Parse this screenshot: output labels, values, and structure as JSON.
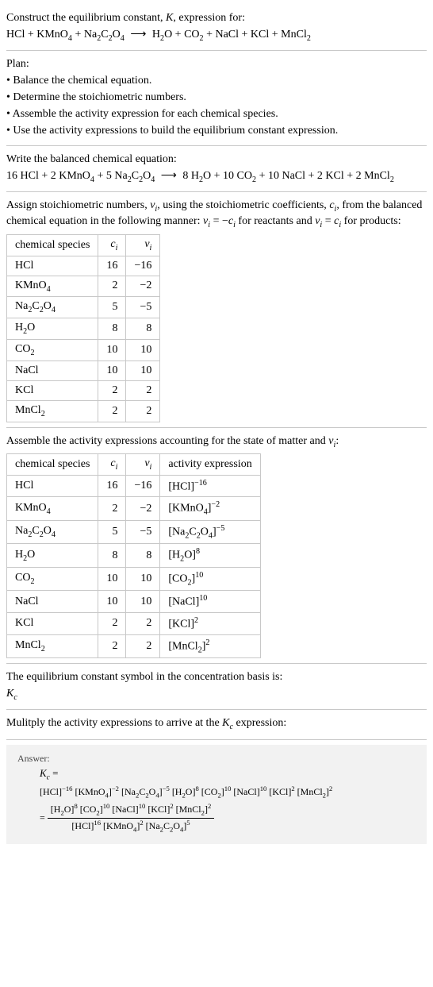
{
  "intro": {
    "line1": "Construct the equilibrium constant, ",
    "K": "K",
    "line1b": ", expression for:",
    "eq_lhs": [
      {
        "t": "HCl"
      },
      {
        "t": " + "
      },
      {
        "t": "KMnO",
        "sub": "4"
      },
      {
        "t": " + "
      },
      {
        "t": "Na",
        "sub": "2"
      },
      {
        "t": "C",
        "sub": "2"
      },
      {
        "t": "O",
        "sub": "4"
      }
    ],
    "eq_rhs": [
      {
        "t": "H",
        "sub": "2"
      },
      {
        "t": "O + CO",
        "sub": "2"
      },
      {
        "t": " + NaCl + KCl + MnCl",
        "sub": "2"
      }
    ]
  },
  "plan": {
    "title": "Plan:",
    "bullets": [
      "Balance the chemical equation.",
      "Determine the stoichiometric numbers.",
      "Assemble the activity expression for each chemical species.",
      "Use the activity expressions to build the equilibrium constant expression."
    ]
  },
  "balanced": {
    "title": "Write the balanced chemical equation:",
    "lhs": [
      {
        "t": "16 HCl + 2 KMnO",
        "sub": "4"
      },
      {
        "t": " + 5 Na",
        "sub": "2"
      },
      {
        "t": "C",
        "sub": "2"
      },
      {
        "t": "O",
        "sub": "4"
      }
    ],
    "rhs": [
      {
        "t": "8 H",
        "sub": "2"
      },
      {
        "t": "O + 10 CO",
        "sub": "2"
      },
      {
        "t": " + 10 NaCl + 2 KCl + 2 MnCl",
        "sub": "2"
      }
    ]
  },
  "stoich": {
    "text_a": "Assign stoichiometric numbers, ",
    "nu": "ν",
    "text_b": ", using the stoichiometric coefficients, ",
    "c": "c",
    "text_c": ", from the balanced chemical equation in the following manner: ",
    "rel1_a": " = −",
    "text_d": " for reactants and ",
    "rel2_a": " = ",
    "text_e": " for products:",
    "headers": [
      "chemical species",
      "c_i",
      "ν_i"
    ],
    "rows": [
      {
        "sp": [
          {
            "t": "HCl"
          }
        ],
        "c": "16",
        "nu": "−16"
      },
      {
        "sp": [
          {
            "t": "KMnO",
            "sub": "4"
          }
        ],
        "c": "2",
        "nu": "−2"
      },
      {
        "sp": [
          {
            "t": "Na",
            "sub": "2"
          },
          {
            "t": "C",
            "sub": "2"
          },
          {
            "t": "O",
            "sub": "4"
          }
        ],
        "c": "5",
        "nu": "−5"
      },
      {
        "sp": [
          {
            "t": "H",
            "sub": "2"
          },
          {
            "t": "O"
          }
        ],
        "c": "8",
        "nu": "8"
      },
      {
        "sp": [
          {
            "t": "CO",
            "sub": "2"
          }
        ],
        "c": "10",
        "nu": "10"
      },
      {
        "sp": [
          {
            "t": "NaCl"
          }
        ],
        "c": "10",
        "nu": "10"
      },
      {
        "sp": [
          {
            "t": "KCl"
          }
        ],
        "c": "2",
        "nu": "2"
      },
      {
        "sp": [
          {
            "t": "MnCl",
            "sub": "2"
          }
        ],
        "c": "2",
        "nu": "2"
      }
    ]
  },
  "activity": {
    "title_a": "Assemble the activity expressions accounting for the state of matter and ",
    "title_b": ":",
    "headers": [
      "chemical species",
      "c_i",
      "ν_i",
      "activity expression"
    ],
    "rows": [
      {
        "sp": [
          {
            "t": "HCl"
          }
        ],
        "c": "16",
        "nu": "−16",
        "ae": [
          {
            "t": "[HCl]",
            "sup": "−16"
          }
        ]
      },
      {
        "sp": [
          {
            "t": "KMnO",
            "sub": "4"
          }
        ],
        "c": "2",
        "nu": "−2",
        "ae": [
          {
            "t": "[KMnO",
            "sub": "4"
          },
          {
            "t": "]",
            "sup": "−2"
          }
        ]
      },
      {
        "sp": [
          {
            "t": "Na",
            "sub": "2"
          },
          {
            "t": "C",
            "sub": "2"
          },
          {
            "t": "O",
            "sub": "4"
          }
        ],
        "c": "5",
        "nu": "−5",
        "ae": [
          {
            "t": "[Na",
            "sub": "2"
          },
          {
            "t": "C",
            "sub": "2"
          },
          {
            "t": "O",
            "sub": "4"
          },
          {
            "t": "]",
            "sup": "−5"
          }
        ]
      },
      {
        "sp": [
          {
            "t": "H",
            "sub": "2"
          },
          {
            "t": "O"
          }
        ],
        "c": "8",
        "nu": "8",
        "ae": [
          {
            "t": "[H",
            "sub": "2"
          },
          {
            "t": "O]",
            "sup": "8"
          }
        ]
      },
      {
        "sp": [
          {
            "t": "CO",
            "sub": "2"
          }
        ],
        "c": "10",
        "nu": "10",
        "ae": [
          {
            "t": "[CO",
            "sub": "2"
          },
          {
            "t": "]",
            "sup": "10"
          }
        ]
      },
      {
        "sp": [
          {
            "t": "NaCl"
          }
        ],
        "c": "10",
        "nu": "10",
        "ae": [
          {
            "t": "[NaCl]",
            "sup": "10"
          }
        ]
      },
      {
        "sp": [
          {
            "t": "KCl"
          }
        ],
        "c": "2",
        "nu": "2",
        "ae": [
          {
            "t": "[KCl]",
            "sup": "2"
          }
        ]
      },
      {
        "sp": [
          {
            "t": "MnCl",
            "sub": "2"
          }
        ],
        "c": "2",
        "nu": "2",
        "ae": [
          {
            "t": "[MnCl",
            "sub": "2"
          },
          {
            "t": "]",
            "sup": "2"
          }
        ]
      }
    ]
  },
  "kc_symbol": {
    "line": "The equilibrium constant symbol in the concentration basis is:",
    "sym": "K",
    "sub": "c"
  },
  "multiply": {
    "text_a": "Mulitply the activity expressions to arrive at the ",
    "text_b": " expression:"
  },
  "answer": {
    "label": "Answer:",
    "kc": "K",
    "kc_sub": "c",
    "eq": " = ",
    "flat": [
      {
        "t": "[HCl]",
        "sup": "−16"
      },
      {
        "t": " [KMnO",
        "sub": "4"
      },
      {
        "t": "]",
        "sup": "−2"
      },
      {
        "t": " [Na",
        "sub": "2"
      },
      {
        "t": "C",
        "sub": "2"
      },
      {
        "t": "O",
        "sub": "4"
      },
      {
        "t": "]",
        "sup": "−5"
      },
      {
        "t": " [H",
        "sub": "2"
      },
      {
        "t": "O]",
        "sup": "8"
      },
      {
        "t": " [CO",
        "sub": "2"
      },
      {
        "t": "]",
        "sup": "10"
      },
      {
        "t": " [NaCl]",
        "sup": "10"
      },
      {
        "t": " [KCl]",
        "sup": "2"
      },
      {
        "t": " [MnCl",
        "sub": "2"
      },
      {
        "t": "]",
        "sup": "2"
      }
    ],
    "numerator": [
      {
        "t": "[H",
        "sub": "2"
      },
      {
        "t": "O]",
        "sup": "8"
      },
      {
        "t": " [CO",
        "sub": "2"
      },
      {
        "t": "]",
        "sup": "10"
      },
      {
        "t": " [NaCl]",
        "sup": "10"
      },
      {
        "t": " [KCl]",
        "sup": "2"
      },
      {
        "t": " [MnCl",
        "sub": "2"
      },
      {
        "t": "]",
        "sup": "2"
      }
    ],
    "denominator": [
      {
        "t": "[HCl]",
        "sup": "16"
      },
      {
        "t": " [KMnO",
        "sub": "4"
      },
      {
        "t": "]",
        "sup": "2"
      },
      {
        "t": " [Na",
        "sub": "2"
      },
      {
        "t": "C",
        "sub": "2"
      },
      {
        "t": "O",
        "sub": "4"
      },
      {
        "t": "]",
        "sup": "5"
      }
    ]
  },
  "glyphs": {
    "arrow": "⟶",
    "bullet": "•"
  }
}
